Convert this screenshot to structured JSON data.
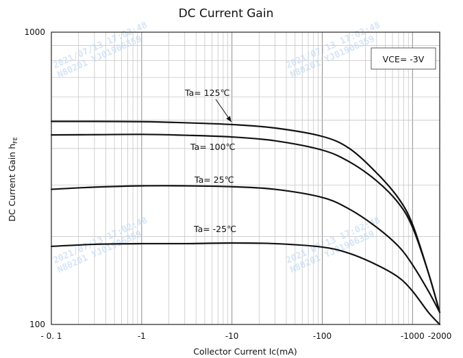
{
  "chart_data": {
    "type": "line",
    "title": "DC Current Gain",
    "xlabel": "Collector Current   Ic(mA)",
    "ylabel": "DC Current Gain   h",
    "ylabel_sub": "FE",
    "x_scale": "log",
    "y_scale": "log",
    "xlim": [
      -0.1,
      -2000
    ],
    "ylim": [
      100,
      1000
    ],
    "x_ticks": [
      {
        "value": -0.1,
        "label": "- 0. 1"
      },
      {
        "value": -1,
        "label": "-1"
      },
      {
        "value": -10,
        "label": "-10"
      },
      {
        "value": -100,
        "label": "-100"
      },
      {
        "value": -1000,
        "label": "-1000"
      },
      {
        "value": -2000,
        "label": "-2000"
      }
    ],
    "y_ticks": [
      {
        "value": 100,
        "label": "100"
      },
      {
        "value": 1000,
        "label": "1000"
      }
    ],
    "grid": true,
    "condition_box": "VCE= -3V",
    "condition_position": "top-right",
    "series": [
      {
        "name": "Ta= 125℃",
        "x": [
          -0.1,
          -0.3,
          -1,
          -3,
          -10,
          -30,
          -100,
          -200,
          -400,
          -700,
          -1000,
          -1500,
          -2000
        ],
        "y": [
          495,
          495,
          494,
          490,
          483,
          470,
          440,
          400,
          330,
          270,
          220,
          150,
          110
        ]
      },
      {
        "name": "Ta= 100℃",
        "x": [
          -0.1,
          -0.3,
          -1,
          -3,
          -10,
          -30,
          -100,
          -200,
          -400,
          -700,
          -1000,
          -1500,
          -2000
        ],
        "y": [
          445,
          446,
          447,
          444,
          438,
          425,
          395,
          360,
          310,
          260,
          215,
          150,
          110
        ]
      },
      {
        "name": "Ta= 25℃",
        "x": [
          -0.1,
          -0.3,
          -1,
          -3,
          -10,
          -30,
          -100,
          -200,
          -400,
          -700,
          -1000,
          -1500,
          -2000
        ],
        "y": [
          290,
          295,
          298,
          298,
          296,
          290,
          272,
          248,
          215,
          185,
          160,
          130,
          110
        ]
      },
      {
        "name": "Ta= -25℃",
        "x": [
          -0.1,
          -0.3,
          -1,
          -3,
          -10,
          -30,
          -100,
          -200,
          -400,
          -700,
          -1000,
          -1500,
          -2000
        ],
        "y": [
          185,
          188,
          189,
          189,
          190,
          189,
          184,
          175,
          160,
          145,
          130,
          110,
          100
        ]
      }
    ],
    "annotation_arrow": {
      "label": "Ta= 125℃",
      "points_to_x": -10,
      "points_to_y": 483
    },
    "watermark_lines": [
      "2021/07/13 17:02:48",
      "N80201 YJ01906359"
    ]
  }
}
